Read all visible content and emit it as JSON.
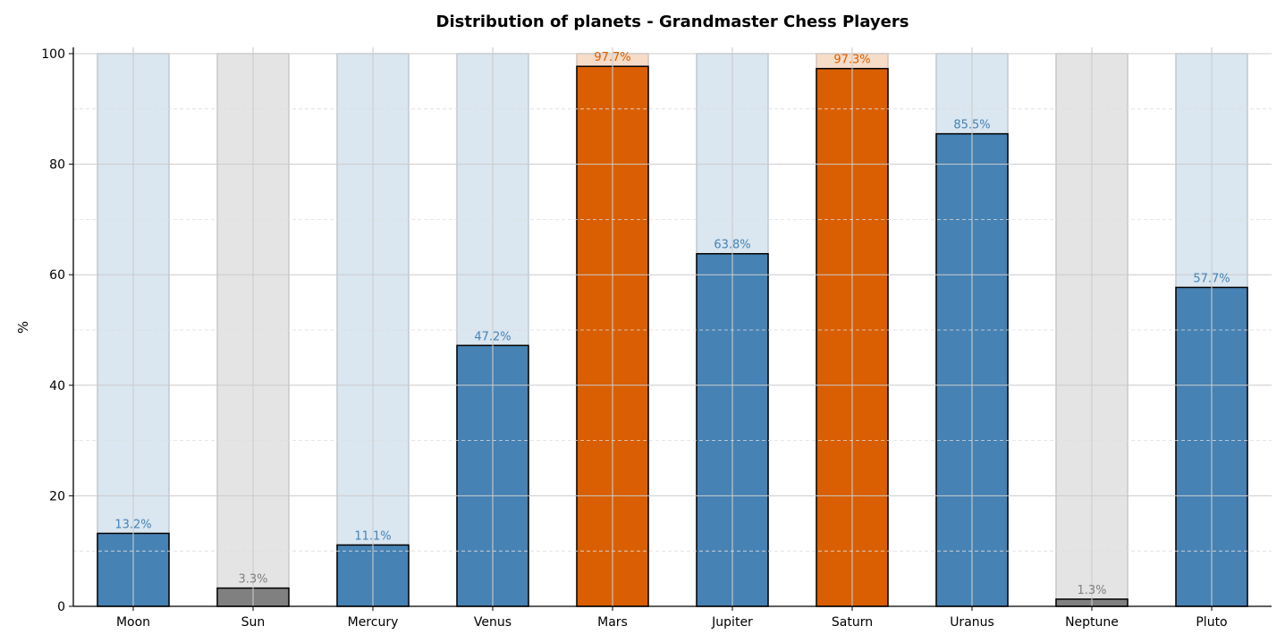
{
  "chart_data": {
    "type": "bar",
    "title": "Distribution of planets - Grandmaster Chess Players",
    "xlabel": "",
    "ylabel": "%",
    "ylim": [
      0,
      100
    ],
    "yticks": [
      0,
      20,
      40,
      60,
      80,
      100
    ],
    "grid": true,
    "categories": [
      "Moon",
      "Sun",
      "Mercury",
      "Venus",
      "Mars",
      "Jupiter",
      "Saturn",
      "Uranus",
      "Neptune",
      "Pluto"
    ],
    "values": [
      13.2,
      3.3,
      11.1,
      47.2,
      97.7,
      63.8,
      97.3,
      85.5,
      1.3,
      57.7
    ],
    "labels": [
      "13.2%",
      "3.3%",
      "11.1%",
      "47.2%",
      "97.7%",
      "63.8%",
      "97.3%",
      "85.5%",
      "1.3%",
      "57.7%"
    ],
    "groups": [
      "blue",
      "gray",
      "blue",
      "blue",
      "orange",
      "blue",
      "orange",
      "blue",
      "gray",
      "blue"
    ]
  },
  "colors": {
    "blue": {
      "bar": "#4682b4",
      "bg": "#dae6f0",
      "bgEdge": "#c0c8d0",
      "label": "#4682b4"
    },
    "gray": {
      "bar": "#808080",
      "bg": "#e4e4e4",
      "bgEdge": "#c8c8c8",
      "label": "#808080"
    },
    "orange": {
      "bar": "#d95f02",
      "bg": "#f7dcc8",
      "bgEdge": "#d0c4bc",
      "label": "#d95f02"
    }
  }
}
